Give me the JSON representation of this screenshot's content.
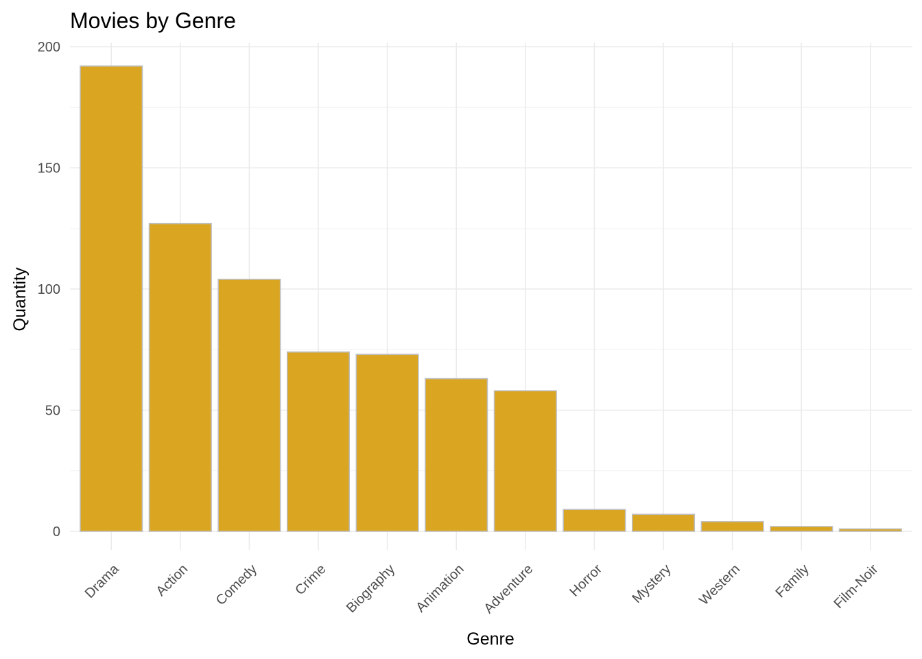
{
  "chart_data": {
    "type": "bar",
    "title": "Movies by Genre",
    "xlabel": "Genre",
    "ylabel": "Quantity",
    "categories": [
      "Drama",
      "Action",
      "Comedy",
      "Crime",
      "Biography",
      "Animation",
      "Adventure",
      "Horror",
      "Mystery",
      "Western",
      "Family",
      "Film-Noir"
    ],
    "values": [
      192,
      127,
      104,
      74,
      73,
      63,
      58,
      9,
      7,
      4,
      2,
      1
    ],
    "ylim": [
      0,
      200
    ],
    "yticks": [
      0,
      50,
      100,
      150,
      200
    ],
    "grid": true,
    "bar_color": "#DAA520",
    "bar_outline": "#BEBEBE"
  }
}
